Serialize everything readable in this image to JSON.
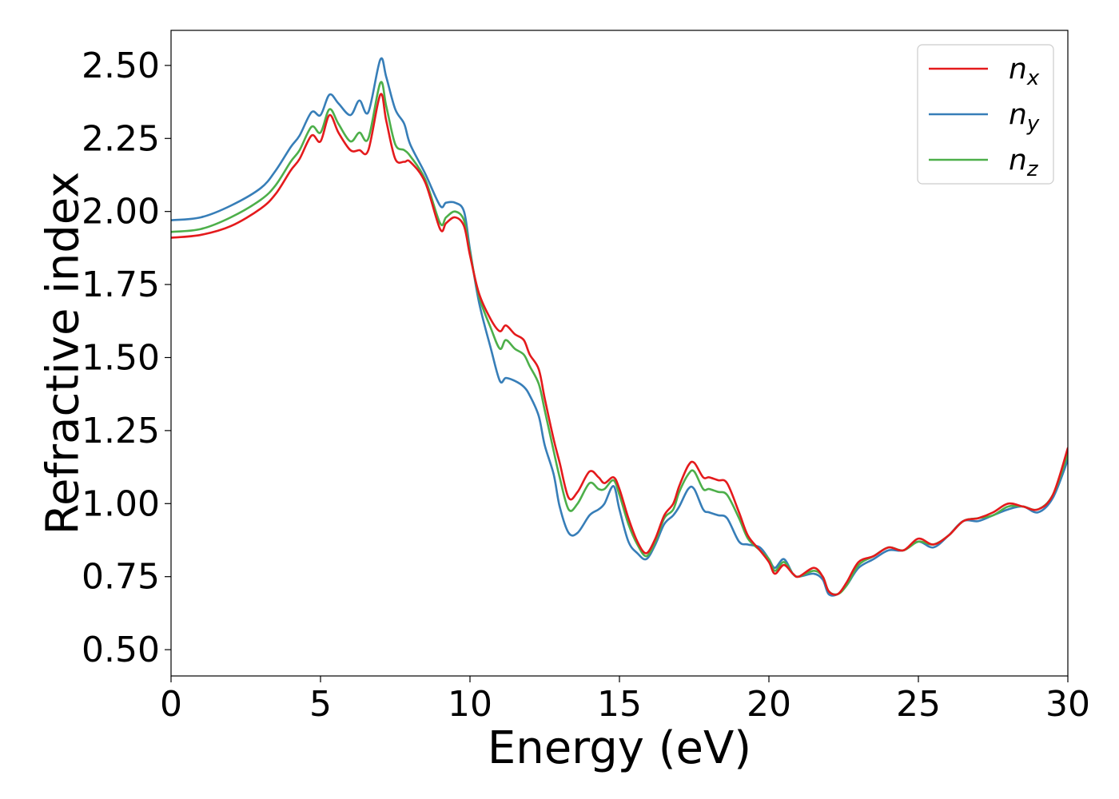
{
  "chart_data": {
    "type": "line",
    "xlabel": "Energy (eV)",
    "ylabel": "Refractive index",
    "xlim": [
      0,
      30
    ],
    "ylim": [
      0.41,
      2.62
    ],
    "x_ticks": [
      0,
      5,
      10,
      15,
      20,
      25,
      30
    ],
    "x_tick_labels": [
      "0",
      "5",
      "10",
      "15",
      "20",
      "25",
      "30"
    ],
    "y_ticks": [
      0.5,
      0.75,
      1.0,
      1.25,
      1.5,
      1.75,
      2.0,
      2.25,
      2.5
    ],
    "y_tick_labels": [
      "0.50",
      "0.75",
      "1.00",
      "1.25",
      "1.50",
      "1.75",
      "2.00",
      "2.25",
      "2.50"
    ],
    "grid": false,
    "legend_position": "top-right",
    "series": [
      {
        "name": "n",
        "subscript": "x",
        "color": "#e41a1c",
        "points": [
          [
            0,
            1.91
          ],
          [
            1,
            1.92
          ],
          [
            2,
            1.95
          ],
          [
            3,
            2.01
          ],
          [
            3.5,
            2.06
          ],
          [
            4,
            2.14
          ],
          [
            4.3,
            2.18
          ],
          [
            4.7,
            2.26
          ],
          [
            5.0,
            2.24
          ],
          [
            5.3,
            2.33
          ],
          [
            5.6,
            2.27
          ],
          [
            6.0,
            2.21
          ],
          [
            6.3,
            2.21
          ],
          [
            6.6,
            2.21
          ],
          [
            7.0,
            2.4
          ],
          [
            7.2,
            2.31
          ],
          [
            7.5,
            2.18
          ],
          [
            7.8,
            2.17
          ],
          [
            8.0,
            2.17
          ],
          [
            8.5,
            2.1
          ],
          [
            9.0,
            1.94
          ],
          [
            9.2,
            1.96
          ],
          [
            9.5,
            1.98
          ],
          [
            9.8,
            1.95
          ],
          [
            10.0,
            1.85
          ],
          [
            10.3,
            1.72
          ],
          [
            10.7,
            1.63
          ],
          [
            11.0,
            1.59
          ],
          [
            11.2,
            1.61
          ],
          [
            11.5,
            1.58
          ],
          [
            11.8,
            1.56
          ],
          [
            12.0,
            1.51
          ],
          [
            12.3,
            1.46
          ],
          [
            12.5,
            1.36
          ],
          [
            12.8,
            1.22
          ],
          [
            13.0,
            1.14
          ],
          [
            13.3,
            1.02
          ],
          [
            13.6,
            1.04
          ],
          [
            14.0,
            1.11
          ],
          [
            14.3,
            1.09
          ],
          [
            14.5,
            1.07
          ],
          [
            14.8,
            1.09
          ],
          [
            15.0,
            1.05
          ],
          [
            15.3,
            0.95
          ],
          [
            15.6,
            0.87
          ],
          [
            15.9,
            0.83
          ],
          [
            16.2,
            0.88
          ],
          [
            16.5,
            0.96
          ],
          [
            16.8,
            1.0
          ],
          [
            17.0,
            1.06
          ],
          [
            17.3,
            1.13
          ],
          [
            17.5,
            1.14
          ],
          [
            17.8,
            1.09
          ],
          [
            18.0,
            1.09
          ],
          [
            18.3,
            1.08
          ],
          [
            18.6,
            1.07
          ],
          [
            19.0,
            0.97
          ],
          [
            19.3,
            0.89
          ],
          [
            19.7,
            0.84
          ],
          [
            20.0,
            0.8
          ],
          [
            20.2,
            0.76
          ],
          [
            20.5,
            0.79
          ],
          [
            20.8,
            0.76
          ],
          [
            21.0,
            0.75
          ],
          [
            21.5,
            0.78
          ],
          [
            21.8,
            0.75
          ],
          [
            22.0,
            0.7
          ],
          [
            22.3,
            0.69
          ],
          [
            22.6,
            0.73
          ],
          [
            23.0,
            0.8
          ],
          [
            23.5,
            0.82
          ],
          [
            24.0,
            0.85
          ],
          [
            24.5,
            0.84
          ],
          [
            25.0,
            0.88
          ],
          [
            25.5,
            0.86
          ],
          [
            26.0,
            0.89
          ],
          [
            26.5,
            0.94
          ],
          [
            27.0,
            0.95
          ],
          [
            27.5,
            0.97
          ],
          [
            28.0,
            1.0
          ],
          [
            28.5,
            0.99
          ],
          [
            29.0,
            0.98
          ],
          [
            29.5,
            1.03
          ],
          [
            30.0,
            1.19
          ]
        ]
      },
      {
        "name": "n",
        "subscript": "y",
        "color": "#377eb8",
        "points": [
          [
            0,
            1.97
          ],
          [
            1,
            1.98
          ],
          [
            2,
            2.02
          ],
          [
            3,
            2.08
          ],
          [
            3.5,
            2.14
          ],
          [
            4,
            2.22
          ],
          [
            4.3,
            2.26
          ],
          [
            4.7,
            2.34
          ],
          [
            5.0,
            2.33
          ],
          [
            5.3,
            2.4
          ],
          [
            5.6,
            2.37
          ],
          [
            6.0,
            2.33
          ],
          [
            6.3,
            2.38
          ],
          [
            6.6,
            2.34
          ],
          [
            7.0,
            2.52
          ],
          [
            7.2,
            2.46
          ],
          [
            7.5,
            2.35
          ],
          [
            7.8,
            2.3
          ],
          [
            8.0,
            2.23
          ],
          [
            8.5,
            2.13
          ],
          [
            9.0,
            2.02
          ],
          [
            9.2,
            2.03
          ],
          [
            9.5,
            2.03
          ],
          [
            9.8,
            2.0
          ],
          [
            10.0,
            1.87
          ],
          [
            10.3,
            1.69
          ],
          [
            10.7,
            1.53
          ],
          [
            11.0,
            1.42
          ],
          [
            11.2,
            1.43
          ],
          [
            11.5,
            1.42
          ],
          [
            11.8,
            1.4
          ],
          [
            12.0,
            1.37
          ],
          [
            12.3,
            1.3
          ],
          [
            12.5,
            1.2
          ],
          [
            12.8,
            1.1
          ],
          [
            13.0,
            0.99
          ],
          [
            13.3,
            0.9
          ],
          [
            13.6,
            0.9
          ],
          [
            14.0,
            0.96
          ],
          [
            14.3,
            0.98
          ],
          [
            14.5,
            1.0
          ],
          [
            14.8,
            1.06
          ],
          [
            15.0,
            0.98
          ],
          [
            15.3,
            0.87
          ],
          [
            15.6,
            0.83
          ],
          [
            15.9,
            0.81
          ],
          [
            16.2,
            0.86
          ],
          [
            16.5,
            0.93
          ],
          [
            16.8,
            0.96
          ],
          [
            17.0,
            0.99
          ],
          [
            17.3,
            1.05
          ],
          [
            17.5,
            1.05
          ],
          [
            17.8,
            0.98
          ],
          [
            18.0,
            0.97
          ],
          [
            18.3,
            0.96
          ],
          [
            18.6,
            0.95
          ],
          [
            19.0,
            0.87
          ],
          [
            19.3,
            0.86
          ],
          [
            19.7,
            0.85
          ],
          [
            20.0,
            0.81
          ],
          [
            20.2,
            0.78
          ],
          [
            20.5,
            0.81
          ],
          [
            20.8,
            0.76
          ],
          [
            21.0,
            0.75
          ],
          [
            21.5,
            0.76
          ],
          [
            21.8,
            0.74
          ],
          [
            22.0,
            0.69
          ],
          [
            22.3,
            0.69
          ],
          [
            22.6,
            0.72
          ],
          [
            23.0,
            0.78
          ],
          [
            23.5,
            0.81
          ],
          [
            24.0,
            0.84
          ],
          [
            24.5,
            0.84
          ],
          [
            25.0,
            0.87
          ],
          [
            25.5,
            0.85
          ],
          [
            26.0,
            0.89
          ],
          [
            26.5,
            0.94
          ],
          [
            27.0,
            0.94
          ],
          [
            27.5,
            0.96
          ],
          [
            28.0,
            0.98
          ],
          [
            28.5,
            0.99
          ],
          [
            29.0,
            0.97
          ],
          [
            29.5,
            1.02
          ],
          [
            30.0,
            1.15
          ]
        ]
      },
      {
        "name": "n",
        "subscript": "z",
        "color": "#4daf4a",
        "points": [
          [
            0,
            1.93
          ],
          [
            1,
            1.94
          ],
          [
            2,
            1.98
          ],
          [
            3,
            2.04
          ],
          [
            3.5,
            2.09
          ],
          [
            4,
            2.17
          ],
          [
            4.3,
            2.21
          ],
          [
            4.7,
            2.29
          ],
          [
            5.0,
            2.27
          ],
          [
            5.3,
            2.35
          ],
          [
            5.6,
            2.3
          ],
          [
            6.0,
            2.24
          ],
          [
            6.3,
            2.27
          ],
          [
            6.6,
            2.25
          ],
          [
            7.0,
            2.44
          ],
          [
            7.2,
            2.36
          ],
          [
            7.5,
            2.23
          ],
          [
            7.8,
            2.21
          ],
          [
            8.0,
            2.19
          ],
          [
            8.5,
            2.11
          ],
          [
            9.0,
            1.96
          ],
          [
            9.2,
            1.98
          ],
          [
            9.5,
            2.0
          ],
          [
            9.8,
            1.97
          ],
          [
            10.0,
            1.86
          ],
          [
            10.3,
            1.71
          ],
          [
            10.7,
            1.6
          ],
          [
            11.0,
            1.53
          ],
          [
            11.2,
            1.56
          ],
          [
            11.5,
            1.53
          ],
          [
            11.8,
            1.51
          ],
          [
            12.0,
            1.47
          ],
          [
            12.3,
            1.41
          ],
          [
            12.5,
            1.32
          ],
          [
            12.8,
            1.18
          ],
          [
            13.0,
            1.09
          ],
          [
            13.3,
            0.98
          ],
          [
            13.6,
            1.0
          ],
          [
            14.0,
            1.07
          ],
          [
            14.3,
            1.05
          ],
          [
            14.5,
            1.05
          ],
          [
            14.8,
            1.08
          ],
          [
            15.0,
            1.03
          ],
          [
            15.3,
            0.93
          ],
          [
            15.6,
            0.86
          ],
          [
            15.9,
            0.82
          ],
          [
            16.2,
            0.87
          ],
          [
            16.5,
            0.95
          ],
          [
            16.8,
            0.98
          ],
          [
            17.0,
            1.04
          ],
          [
            17.3,
            1.1
          ],
          [
            17.5,
            1.11
          ],
          [
            17.8,
            1.05
          ],
          [
            18.0,
            1.05
          ],
          [
            18.3,
            1.04
          ],
          [
            18.6,
            1.03
          ],
          [
            19.0,
            0.95
          ],
          [
            19.3,
            0.88
          ],
          [
            19.7,
            0.84
          ],
          [
            20.0,
            0.81
          ],
          [
            20.2,
            0.77
          ],
          [
            20.5,
            0.8
          ],
          [
            20.8,
            0.76
          ],
          [
            21.0,
            0.75
          ],
          [
            21.5,
            0.77
          ],
          [
            21.8,
            0.75
          ],
          [
            22.0,
            0.7
          ],
          [
            22.3,
            0.69
          ],
          [
            22.6,
            0.72
          ],
          [
            23.0,
            0.79
          ],
          [
            23.5,
            0.82
          ],
          [
            24.0,
            0.85
          ],
          [
            24.5,
            0.84
          ],
          [
            25.0,
            0.87
          ],
          [
            25.5,
            0.86
          ],
          [
            26.0,
            0.89
          ],
          [
            26.5,
            0.94
          ],
          [
            27.0,
            0.95
          ],
          [
            27.5,
            0.96
          ],
          [
            28.0,
            0.99
          ],
          [
            28.5,
            0.99
          ],
          [
            29.0,
            0.98
          ],
          [
            29.5,
            1.03
          ],
          [
            30.0,
            1.17
          ]
        ]
      }
    ]
  }
}
